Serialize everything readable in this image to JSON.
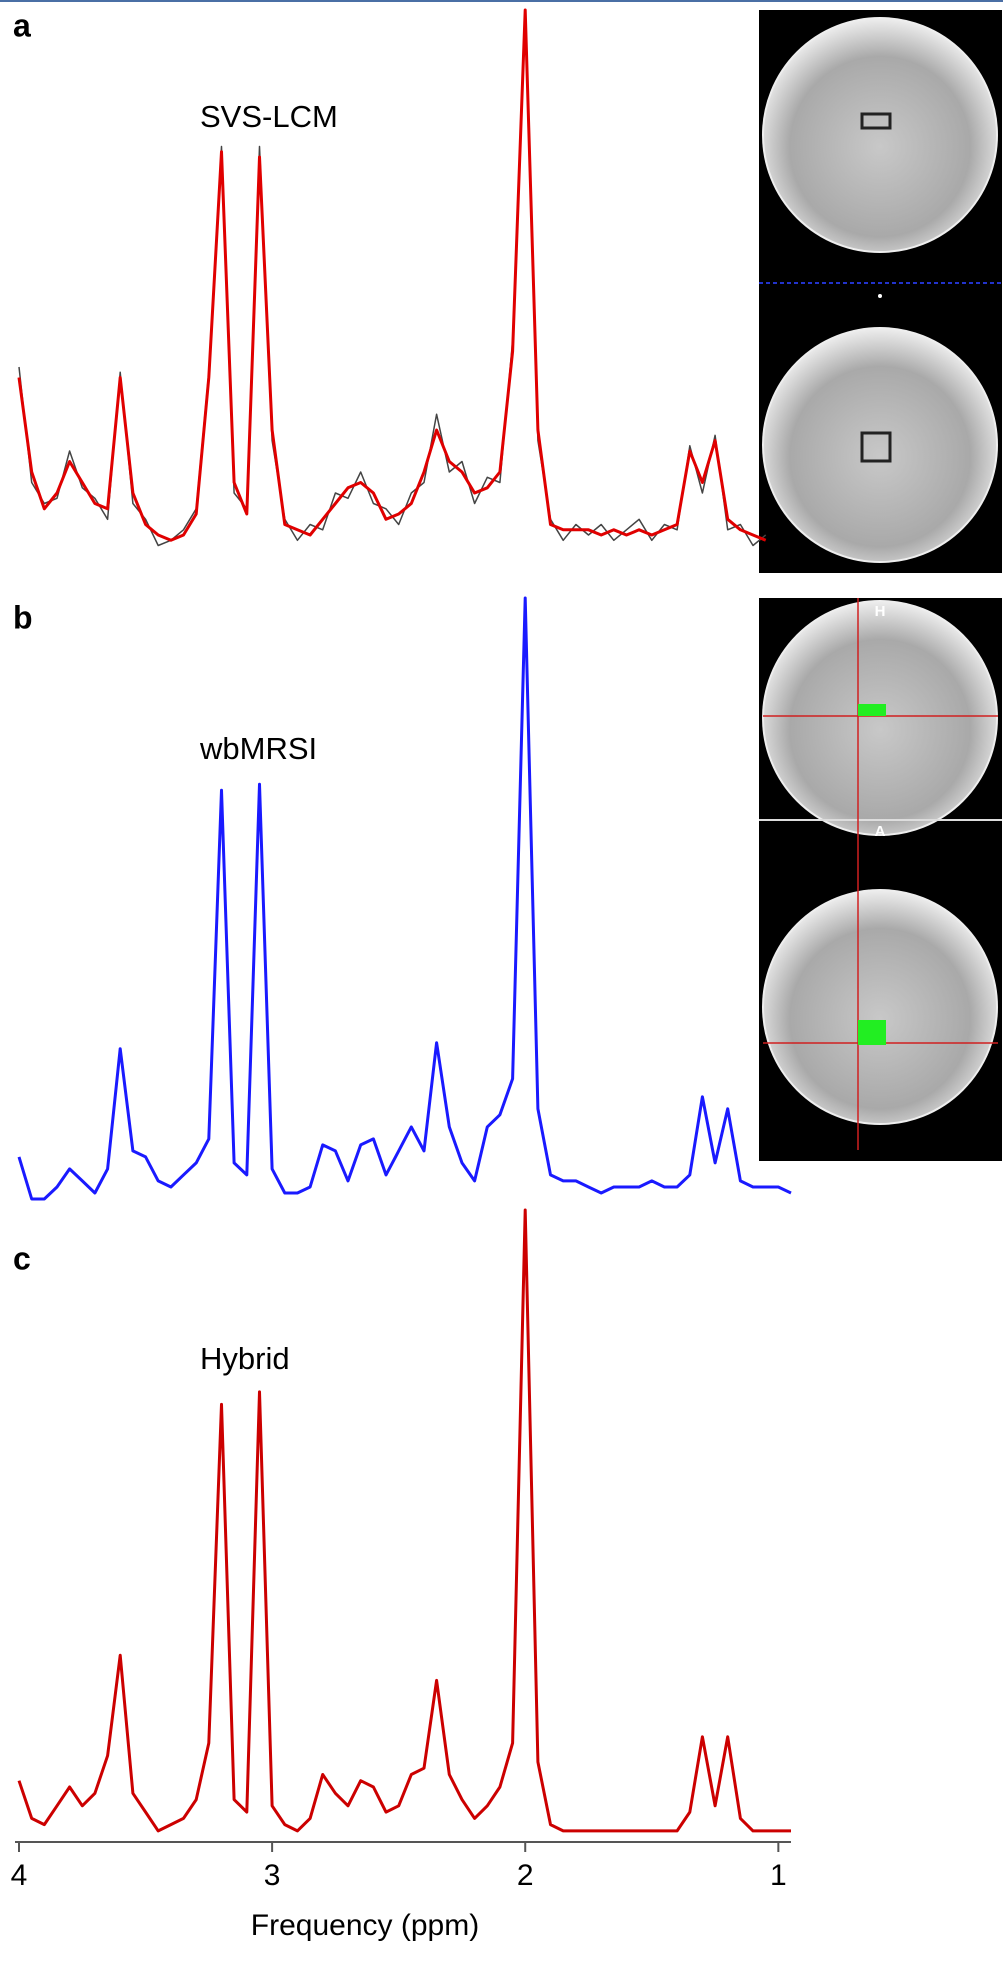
{
  "chart_data": [
    {
      "type": "line",
      "panel": "a",
      "annotation": "SVS-LCM",
      "x": [
        4.0,
        3.95,
        3.9,
        3.85,
        3.8,
        3.75,
        3.7,
        3.65,
        3.6,
        3.55,
        3.5,
        3.45,
        3.4,
        3.35,
        3.3,
        3.25,
        3.2,
        3.15,
        3.1,
        3.05,
        3.0,
        2.95,
        2.9,
        2.85,
        2.8,
        2.75,
        2.7,
        2.65,
        2.6,
        2.55,
        2.5,
        2.45,
        2.4,
        2.35,
        2.3,
        2.25,
        2.2,
        2.15,
        2.1,
        2.05,
        2.0,
        1.95,
        1.9,
        1.85,
        1.8,
        1.75,
        1.7,
        1.65,
        1.6,
        1.55,
        1.5,
        1.45,
        1.4,
        1.35,
        1.3,
        1.25,
        1.2,
        1.15,
        1.1,
        1.05,
        1.0,
        0.95
      ],
      "series": [
        {
          "color": "#444444",
          "values": [
            32,
            10,
            6,
            7,
            16,
            9,
            7,
            3,
            31,
            6,
            3,
            -2,
            -1,
            1,
            5,
            31,
            74,
            8,
            5,
            74,
            18,
            3,
            -1,
            2,
            1,
            8,
            7,
            12,
            6,
            5,
            2,
            8,
            10,
            23,
            12,
            14,
            6,
            11,
            10,
            37,
            100,
            18,
            3,
            -1,
            2,
            0,
            2,
            -1,
            1,
            3,
            -1,
            2,
            1,
            17,
            8,
            19,
            1,
            2,
            -2,
            0,
            null,
            null
          ]
        },
        {
          "color": "#e00000",
          "values": [
            30,
            12,
            5,
            8,
            14,
            10,
            6,
            5,
            30,
            8,
            2,
            0,
            -1,
            0,
            4,
            30,
            73,
            10,
            4,
            72,
            20,
            2,
            1,
            0,
            3,
            6,
            9,
            10,
            8,
            3,
            4,
            6,
            12,
            20,
            14,
            12,
            8,
            9,
            12,
            35,
            100,
            20,
            2,
            1,
            1,
            1,
            0,
            1,
            0,
            1,
            0,
            1,
            2,
            16,
            10,
            18,
            3,
            1,
            0,
            -1,
            null,
            null
          ]
        }
      ],
      "xlim": [
        4.0,
        0.95
      ],
      "ylim": [
        -8,
        100
      ]
    },
    {
      "type": "line",
      "panel": "b",
      "annotation": "wbMRSI",
      "x": [
        4.0,
        3.95,
        3.9,
        3.85,
        3.8,
        3.75,
        3.7,
        3.65,
        3.6,
        3.55,
        3.5,
        3.45,
        3.4,
        3.35,
        3.3,
        3.25,
        3.2,
        3.15,
        3.1,
        3.05,
        3.0,
        2.95,
        2.9,
        2.85,
        2.8,
        2.75,
        2.7,
        2.65,
        2.6,
        2.55,
        2.5,
        2.45,
        2.4,
        2.35,
        2.3,
        2.25,
        2.2,
        2.15,
        2.1,
        2.05,
        2.0,
        1.95,
        1.9,
        1.85,
        1.8,
        1.75,
        1.7,
        1.65,
        1.6,
        1.55,
        1.5,
        1.45,
        1.4,
        1.35,
        1.3,
        1.25,
        1.2,
        1.15,
        1.1,
        1.05,
        1.0,
        0.95
      ],
      "series": [
        {
          "color": "#1a1aff",
          "values": [
            7,
            0,
            0,
            2,
            5,
            3,
            1,
            5,
            25,
            8,
            7,
            3,
            2,
            4,
            6,
            10,
            68,
            6,
            4,
            69,
            5,
            1,
            1,
            2,
            9,
            8,
            3,
            9,
            10,
            4,
            8,
            12,
            8,
            26,
            12,
            6,
            3,
            12,
            14,
            20,
            100,
            15,
            4,
            3,
            3,
            2,
            1,
            2,
            2,
            2,
            3,
            2,
            2,
            4,
            17,
            6,
            15,
            3,
            2,
            2,
            2,
            1
          ]
        }
      ],
      "xlim": [
        4.0,
        0.95
      ],
      "ylim": [
        -3,
        100
      ]
    },
    {
      "type": "line",
      "panel": "c",
      "annotation": "Hybrid",
      "x": [
        4.0,
        3.95,
        3.9,
        3.85,
        3.8,
        3.75,
        3.7,
        3.65,
        3.6,
        3.55,
        3.5,
        3.45,
        3.4,
        3.35,
        3.3,
        3.25,
        3.2,
        3.15,
        3.1,
        3.05,
        3.0,
        2.95,
        2.9,
        2.85,
        2.8,
        2.75,
        2.7,
        2.65,
        2.6,
        2.55,
        2.5,
        2.45,
        2.4,
        2.35,
        2.3,
        2.25,
        2.2,
        2.15,
        2.1,
        2.05,
        2.0,
        1.95,
        1.9,
        1.85,
        1.8,
        1.75,
        1.7,
        1.65,
        1.6,
        1.55,
        1.5,
        1.45,
        1.4,
        1.35,
        1.3,
        1.25,
        1.2,
        1.15,
        1.1,
        1.05,
        1.0,
        0.95
      ],
      "series": [
        {
          "color": "#cc0000",
          "values": [
            9,
            3,
            2,
            5,
            8,
            5,
            7,
            13,
            29,
            7,
            4,
            1,
            2,
            3,
            6,
            15,
            69,
            6,
            4,
            71,
            5,
            2,
            1,
            3,
            10,
            7,
            5,
            9,
            8,
            4,
            5,
            10,
            11,
            25,
            10,
            6,
            3,
            5,
            8,
            15,
            100,
            12,
            2,
            1,
            1,
            1,
            1,
            1,
            1,
            1,
            1,
            1,
            1,
            4,
            16,
            5,
            16,
            3,
            1,
            1,
            1,
            1
          ]
        }
      ],
      "xlim": [
        4.0,
        0.95
      ],
      "ylim": [
        -3,
        100
      ],
      "xticks": [
        4,
        3,
        2,
        1
      ],
      "xlabel": "Frequency (ppm)"
    }
  ],
  "insets": [
    "H",
    "A"
  ]
}
